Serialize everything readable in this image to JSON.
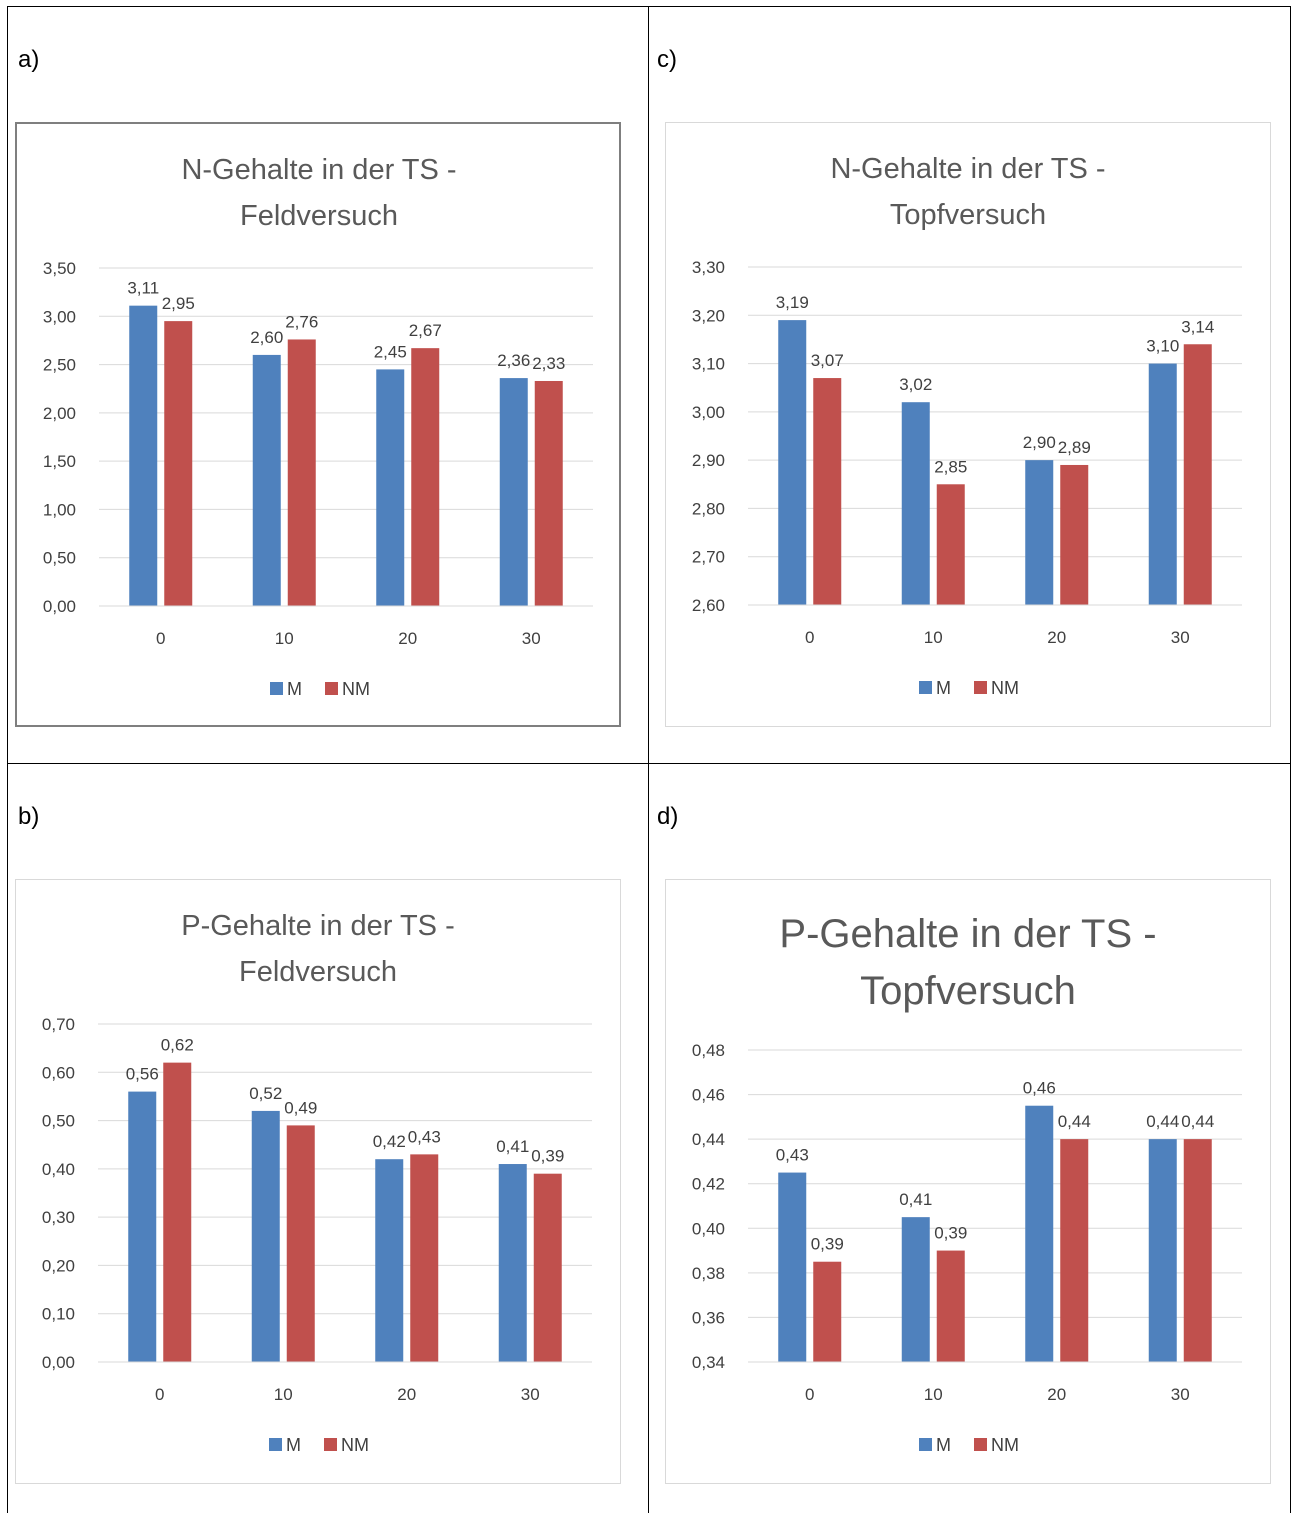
{
  "panels": [
    {
      "letter": "a)"
    },
    {
      "letter": "c)"
    },
    {
      "letter": "b)"
    },
    {
      "letter": "d)"
    }
  ],
  "colors": {
    "M": "#4f81bd",
    "NM": "#c0504d",
    "grid": "#d9d9d9",
    "text": "#404040",
    "title": "#595959"
  },
  "chart_data": [
    {
      "type": "bar",
      "title": "N-Gehalte in der TS - Feldversuch",
      "title_lines": [
        "N-Gehalte in der TS -",
        "Feldversuch"
      ],
      "categories": [
        "0",
        "10",
        "20",
        "30"
      ],
      "series": [
        {
          "name": "M",
          "values": [
            3.11,
            2.6,
            2.45,
            2.36
          ],
          "labels": [
            "3,11",
            "2,60",
            "2,45",
            "2,36"
          ]
        },
        {
          "name": "NM",
          "values": [
            2.95,
            2.76,
            2.67,
            2.33
          ],
          "labels": [
            "2,95",
            "2,76",
            "2,67",
            "2,33"
          ]
        }
      ],
      "ylim": [
        0,
        3.5
      ],
      "yticks": [
        "0,00",
        "0,50",
        "1,00",
        "1,50",
        "2,00",
        "2,50",
        "3,00",
        "3,50"
      ],
      "grid": true,
      "legend": "bottom",
      "xlabel": "",
      "ylabel": ""
    },
    {
      "type": "bar",
      "title": "N-Gehalte in der TS - Topfversuch",
      "title_lines": [
        "N-Gehalte in der TS -",
        "Topfversuch"
      ],
      "categories": [
        "0",
        "10",
        "20",
        "30"
      ],
      "series": [
        {
          "name": "M",
          "values": [
            3.19,
            3.02,
            2.9,
            3.1
          ],
          "labels": [
            "3,19",
            "3,02",
            "2,90",
            "3,10"
          ]
        },
        {
          "name": "NM",
          "values": [
            3.07,
            2.85,
            2.89,
            3.14
          ],
          "labels": [
            "3,07",
            "2,85",
            "2,89",
            "3,14"
          ]
        }
      ],
      "ylim": [
        2.6,
        3.3
      ],
      "yticks": [
        "2,60",
        "2,70",
        "2,80",
        "2,90",
        "3,00",
        "3,10",
        "3,20",
        "3,30"
      ],
      "grid": true,
      "legend": "bottom",
      "xlabel": "",
      "ylabel": ""
    },
    {
      "type": "bar",
      "title": "P-Gehalte in der TS - Feldversuch",
      "title_lines": [
        "P-Gehalte in der TS -",
        "Feldversuch"
      ],
      "categories": [
        "0",
        "10",
        "20",
        "30"
      ],
      "series": [
        {
          "name": "M",
          "values": [
            0.56,
            0.52,
            0.42,
            0.41
          ],
          "labels": [
            "0,56",
            "0,52",
            "0,42",
            "0,41"
          ]
        },
        {
          "name": "NM",
          "values": [
            0.62,
            0.49,
            0.43,
            0.39
          ],
          "labels": [
            "0,62",
            "0,49",
            "0,43",
            "0,39"
          ]
        }
      ],
      "ylim": [
        0,
        0.7
      ],
      "yticks": [
        "0,00",
        "0,10",
        "0,20",
        "0,30",
        "0,40",
        "0,50",
        "0,60",
        "0,70"
      ],
      "grid": true,
      "legend": "bottom",
      "xlabel": "",
      "ylabel": ""
    },
    {
      "type": "bar",
      "title": "P-Gehalte in der TS - Topfversuch",
      "title_lines": [
        "P-Gehalte in der TS -",
        "Topfversuch"
      ],
      "categories": [
        "0",
        "10",
        "20",
        "30"
      ],
      "series": [
        {
          "name": "M",
          "values": [
            0.425,
            0.405,
            0.455,
            0.44
          ],
          "labels": [
            "0,43",
            "0,41",
            "0,46",
            "0,44"
          ]
        },
        {
          "name": "NM",
          "values": [
            0.385,
            0.39,
            0.44,
            0.44
          ],
          "labels": [
            "0,39",
            "0,39",
            "0,44",
            "0,44"
          ]
        }
      ],
      "ylim": [
        0.34,
        0.48
      ],
      "yticks": [
        "0,34",
        "0,36",
        "0,38",
        "0,40",
        "0,42",
        "0,44",
        "0,46",
        "0,48"
      ],
      "grid": true,
      "legend": "bottom",
      "xlabel": "",
      "ylabel": ""
    }
  ]
}
